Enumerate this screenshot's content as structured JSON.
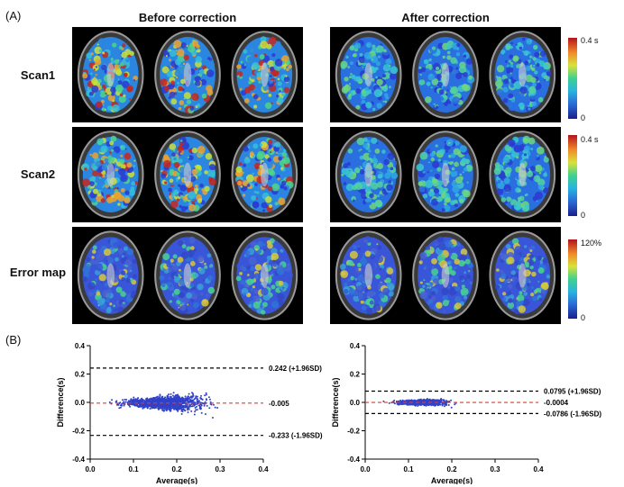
{
  "panel_a_label": "(A)",
  "panel_b_label": "(B)",
  "columns": {
    "before": "Before correction",
    "after": "After correction"
  },
  "rows": [
    {
      "label": "Scan1",
      "cbar_max": "0.4 s",
      "cbar_min": "0"
    },
    {
      "label": "Scan2",
      "cbar_max": "0.4 s",
      "cbar_min": "0"
    },
    {
      "label": "Error map",
      "cbar_max": "120%",
      "cbar_min": "0"
    }
  ],
  "colors": {
    "points": "#3142c8",
    "mean_line": "#e33b2e",
    "limit_line": "#000000"
  },
  "chart_data": [
    {
      "type": "scatter",
      "xlabel": "Average(s)",
      "ylabel": "Difference(s)",
      "xlim": [
        0.0,
        0.4
      ],
      "ylim": [
        -0.4,
        0.4
      ],
      "xticks": [
        "0.0",
        "0.1",
        "0.2",
        "0.3",
        "0.4"
      ],
      "yticks": [
        "0.4",
        "0.2",
        "0.0",
        "-0.2",
        "-0.4"
      ],
      "mean": -0.005,
      "upper_loa": 0.242,
      "lower_loa": -0.233,
      "annotations": [
        "0.242 (+1.96SD)",
        "-0.005",
        "-0.233 (-1.96SD)"
      ],
      "cloud": {
        "x_mean": 0.17,
        "x_spread": 0.06,
        "spread_base": 0.03,
        "spread_slope": 0.55
      }
    },
    {
      "type": "scatter",
      "xlabel": "Average(s)",
      "ylabel": "Difference(s)",
      "xlim": [
        0.0,
        0.4
      ],
      "ylim": [
        -0.4,
        0.4
      ],
      "xticks": [
        "0.0",
        "0.1",
        "0.2",
        "0.3",
        "0.4"
      ],
      "yticks": [
        "0.4",
        "0.2",
        "0.0",
        "-0.2",
        "-0.4"
      ],
      "mean": -0.0004,
      "upper_loa": 0.0795,
      "lower_loa": -0.0786,
      "annotations": [
        "0.0795 (+1.96SD)",
        "-0.0004",
        "-0.0786 (-1.96SD)"
      ],
      "cloud": {
        "x_mean": 0.13,
        "x_spread": 0.035,
        "spread_base": 0.015,
        "spread_slope": 0.18
      }
    }
  ]
}
